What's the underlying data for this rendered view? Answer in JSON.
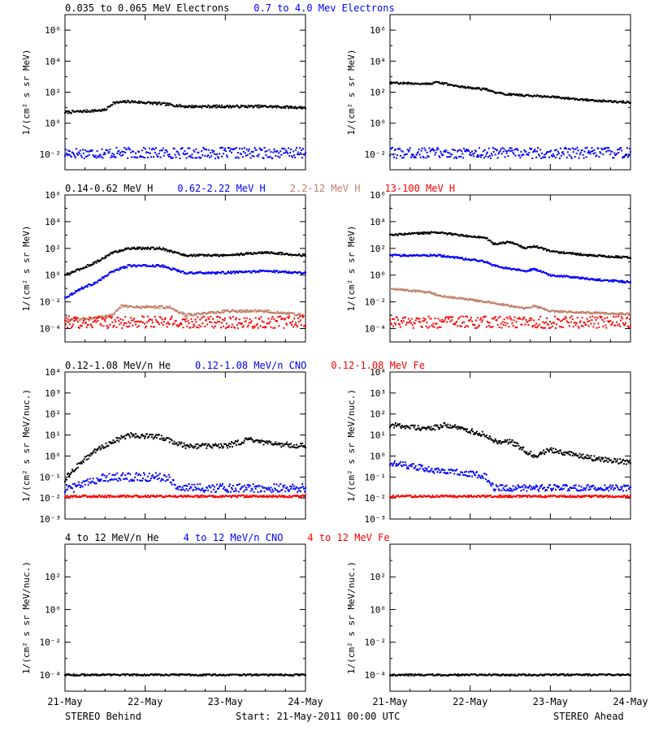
{
  "footer": {
    "left": "STEREO Behind",
    "center": "Start: 21-May-2011 00:00 UTC",
    "right": "STEREO Ahead"
  },
  "colors": {
    "black": "#000000",
    "blue": "#0000ff",
    "tan": "#c08068",
    "red": "#ff0000"
  },
  "chart_data": [
    {
      "type": "scatter",
      "row_title": [
        {
          "text": "0.035 to 0.065 MeV Electrons",
          "color": "#000000"
        },
        {
          "text": "0.7 to 4.0 Mev Electrons",
          "color": "#0000ff"
        }
      ],
      "ylabel": "1/(cm² s sr MeV)",
      "ylim": [
        0.001,
        10000000
      ],
      "ytick_exponents": [
        -2,
        0,
        2,
        4,
        6
      ],
      "yscale": "log",
      "x_ticks": [
        "21-May",
        "22-May",
        "23-May",
        "24-May"
      ],
      "x_labels_shown": false,
      "panels": [
        {
          "name": "STEREO Behind",
          "series": [
            {
              "color": "#000000",
              "x": [
                0,
                0.5,
                0.6,
                0.8,
                1.2,
                1.5,
                2.0,
                2.5,
                3.0
              ],
              "y": [
                5,
                7,
                20,
                25,
                18,
                12,
                12,
                12,
                10
              ],
              "scatter": 0.08
            },
            {
              "color": "#0000ff",
              "x": [
                0,
                3
              ],
              "y": [
                0.012,
                0.012
              ],
              "scatter": 0.35
            }
          ]
        },
        {
          "name": "STEREO Ahead",
          "series": [
            {
              "color": "#000000",
              "x": [
                0,
                0.5,
                0.6,
                0.8,
                1.2,
                1.3,
                1.5,
                2.0,
                2.5,
                3.0
              ],
              "y": [
                400,
                350,
                450,
                250,
                150,
                100,
                70,
                50,
                30,
                22
              ],
              "scatter": 0.06
            },
            {
              "color": "#0000ff",
              "x": [
                0,
                3
              ],
              "y": [
                0.012,
                0.012
              ],
              "scatter": 0.35
            }
          ]
        }
      ]
    },
    {
      "type": "scatter",
      "row_title": [
        {
          "text": "0.14-0.62 MeV H",
          "color": "#000000"
        },
        {
          "text": "0.62-2.22 MeV H",
          "color": "#0000ff"
        },
        {
          "text": "2.2-12 MeV H",
          "color": "#c08068"
        },
        {
          "text": "13-100 MeV H",
          "color": "#ff0000"
        }
      ],
      "ylabel": "1/(cm² s sr MeV)",
      "ylim": [
        1e-05,
        1000000
      ],
      "ytick_exponents": [
        -4,
        -2,
        0,
        2,
        4,
        6
      ],
      "yscale": "log",
      "x_ticks": [
        "21-May",
        "22-May",
        "23-May",
        "24-May"
      ],
      "x_labels_shown": false,
      "panels": [
        {
          "name": "STEREO Behind",
          "series": [
            {
              "color": "#000000",
              "x": [
                0,
                0.2,
                0.4,
                0.6,
                0.8,
                1.2,
                1.5,
                2.0,
                2.5,
                3.0
              ],
              "y": [
                1,
                3,
                10,
                50,
                100,
                100,
                30,
                30,
                50,
                30
              ],
              "scatter": 0.08
            },
            {
              "color": "#0000ff",
              "x": [
                0,
                0.2,
                0.4,
                0.6,
                0.8,
                1.2,
                1.5,
                2.0,
                2.5,
                3.0
              ],
              "y": [
                0.02,
                0.1,
                0.3,
                2,
                5,
                5,
                1.5,
                1.5,
                2,
                1.5
              ],
              "scatter": 0.08
            },
            {
              "color": "#c08068",
              "x": [
                0,
                0.3,
                0.6,
                0.7,
                1.0,
                1.3,
                1.5,
                2.0,
                2.5,
                3.0
              ],
              "y": [
                0.0004,
                0.0006,
                0.001,
                0.005,
                0.004,
                0.004,
                0.001,
                0.002,
                0.002,
                0.001
              ],
              "scatter": 0.1
            },
            {
              "color": "#ff0000",
              "x": [
                0,
                3
              ],
              "y": [
                0.0003,
                0.0003
              ],
              "scatter": 0.45
            }
          ]
        },
        {
          "name": "STEREO Ahead",
          "series": [
            {
              "color": "#000000",
              "x": [
                0,
                0.5,
                0.6,
                1.2,
                1.3,
                1.5,
                1.7,
                1.8,
                2.0,
                2.5,
                3.0
              ],
              "y": [
                1000,
                1500,
                1500,
                600,
                200,
                300,
                100,
                150,
                60,
                30,
                20
              ],
              "scatter": 0.07
            },
            {
              "color": "#0000ff",
              "x": [
                0,
                0.5,
                0.6,
                1.2,
                1.3,
                1.5,
                1.7,
                1.8,
                2.0,
                2.5,
                3.0
              ],
              "y": [
                30,
                30,
                30,
                10,
                5,
                3,
                2,
                3,
                1,
                0.5,
                0.3
              ],
              "scatter": 0.07
            },
            {
              "color": "#c08068",
              "x": [
                0,
                0.5,
                0.6,
                1.2,
                1.5,
                1.7,
                1.8,
                2.0,
                2.5,
                3.0
              ],
              "y": [
                0.1,
                0.05,
                0.03,
                0.01,
                0.005,
                0.003,
                0.005,
                0.002,
                0.0015,
                0.0012
              ],
              "scatter": 0.07
            },
            {
              "color": "#ff0000",
              "x": [
                0,
                3
              ],
              "y": [
                0.0003,
                0.0003
              ],
              "scatter": 0.45
            }
          ]
        }
      ]
    },
    {
      "type": "scatter",
      "row_title": [
        {
          "text": "0.12-1.08 MeV/n He",
          "color": "#000000"
        },
        {
          "text": "0.12-1.08 MeV/n CNO",
          "color": "#0000ff"
        },
        {
          "text": "0.12-1.08 MeV Fe",
          "color": "#ff0000"
        }
      ],
      "ylabel": "1/(cm² s sr MeV/nuc.)",
      "ylim": [
        0.001,
        10000
      ],
      "ytick_exponents": [
        -3,
        -2,
        -1,
        0,
        1,
        2,
        3,
        4
      ],
      "yscale": "log",
      "x_ticks": [
        "21-May",
        "22-May",
        "23-May",
        "24-May"
      ],
      "x_labels_shown": false,
      "panels": [
        {
          "name": "STEREO Behind",
          "series": [
            {
              "color": "#000000",
              "x": [
                0,
                0.2,
                0.4,
                0.6,
                0.8,
                1.2,
                1.5,
                2.0,
                2.3,
                2.5,
                3.0
              ],
              "y": [
                0.08,
                0.5,
                2,
                5,
                10,
                8,
                3,
                3,
                6,
                4,
                3
              ],
              "scatter": 0.12
            },
            {
              "color": "#0000ff",
              "x": [
                0,
                0.1,
                0.5,
                1.3,
                1.4,
                3.0
              ],
              "y": [
                0.03,
                0.03,
                0.1,
                0.1,
                0.03,
                0.03
              ],
              "scatter": 0.2
            },
            {
              "color": "#ff0000",
              "x": [
                0,
                3
              ],
              "y": [
                0.012,
                0.012
              ],
              "scatter": 0.05
            }
          ]
        },
        {
          "name": "STEREO Ahead",
          "series": [
            {
              "color": "#000000",
              "x": [
                0,
                0.5,
                0.7,
                1.2,
                1.3,
                1.5,
                1.8,
                2.0,
                2.5,
                3.0
              ],
              "y": [
                30,
                20,
                30,
                10,
                5,
                5,
                1,
                2,
                0.8,
                0.5
              ],
              "scatter": 0.12
            },
            {
              "color": "#0000ff",
              "x": [
                0,
                0.3,
                0.6,
                1.0,
                1.2,
                1.3,
                3.0
              ],
              "y": [
                0.5,
                0.3,
                0.2,
                0.15,
                0.1,
                0.03,
                0.03
              ],
              "scatter": 0.15
            },
            {
              "color": "#ff0000",
              "x": [
                0,
                3
              ],
              "y": [
                0.012,
                0.012
              ],
              "scatter": 0.05
            }
          ]
        }
      ]
    },
    {
      "type": "scatter",
      "row_title": [
        {
          "text": "4 to 12 MeV/n He",
          "color": "#000000"
        },
        {
          "text": "4 to 12 MeV/n CNO",
          "color": "#0000ff"
        },
        {
          "text": "4 to 12 MeV Fe",
          "color": "#ff0000"
        }
      ],
      "ylabel": "1/(cm² s sr MeV/nuc.)",
      "ylim": [
        1e-05,
        10000
      ],
      "ytick_exponents": [
        -4,
        -2,
        0,
        2
      ],
      "yscale": "log",
      "x_ticks": [
        "21-May",
        "22-May",
        "23-May",
        "24-May"
      ],
      "x_labels_shown": true,
      "panels": [
        {
          "name": "STEREO Behind",
          "series": [
            {
              "color": "#000000",
              "x": [
                0,
                3
              ],
              "y": [
                0.0001,
                0.0001
              ],
              "scatter": 0.05
            }
          ]
        },
        {
          "name": "STEREO Ahead",
          "series": [
            {
              "color": "#000000",
              "x": [
                0,
                3
              ],
              "y": [
                0.0001,
                0.0001
              ],
              "scatter": 0.05
            }
          ]
        }
      ]
    }
  ]
}
